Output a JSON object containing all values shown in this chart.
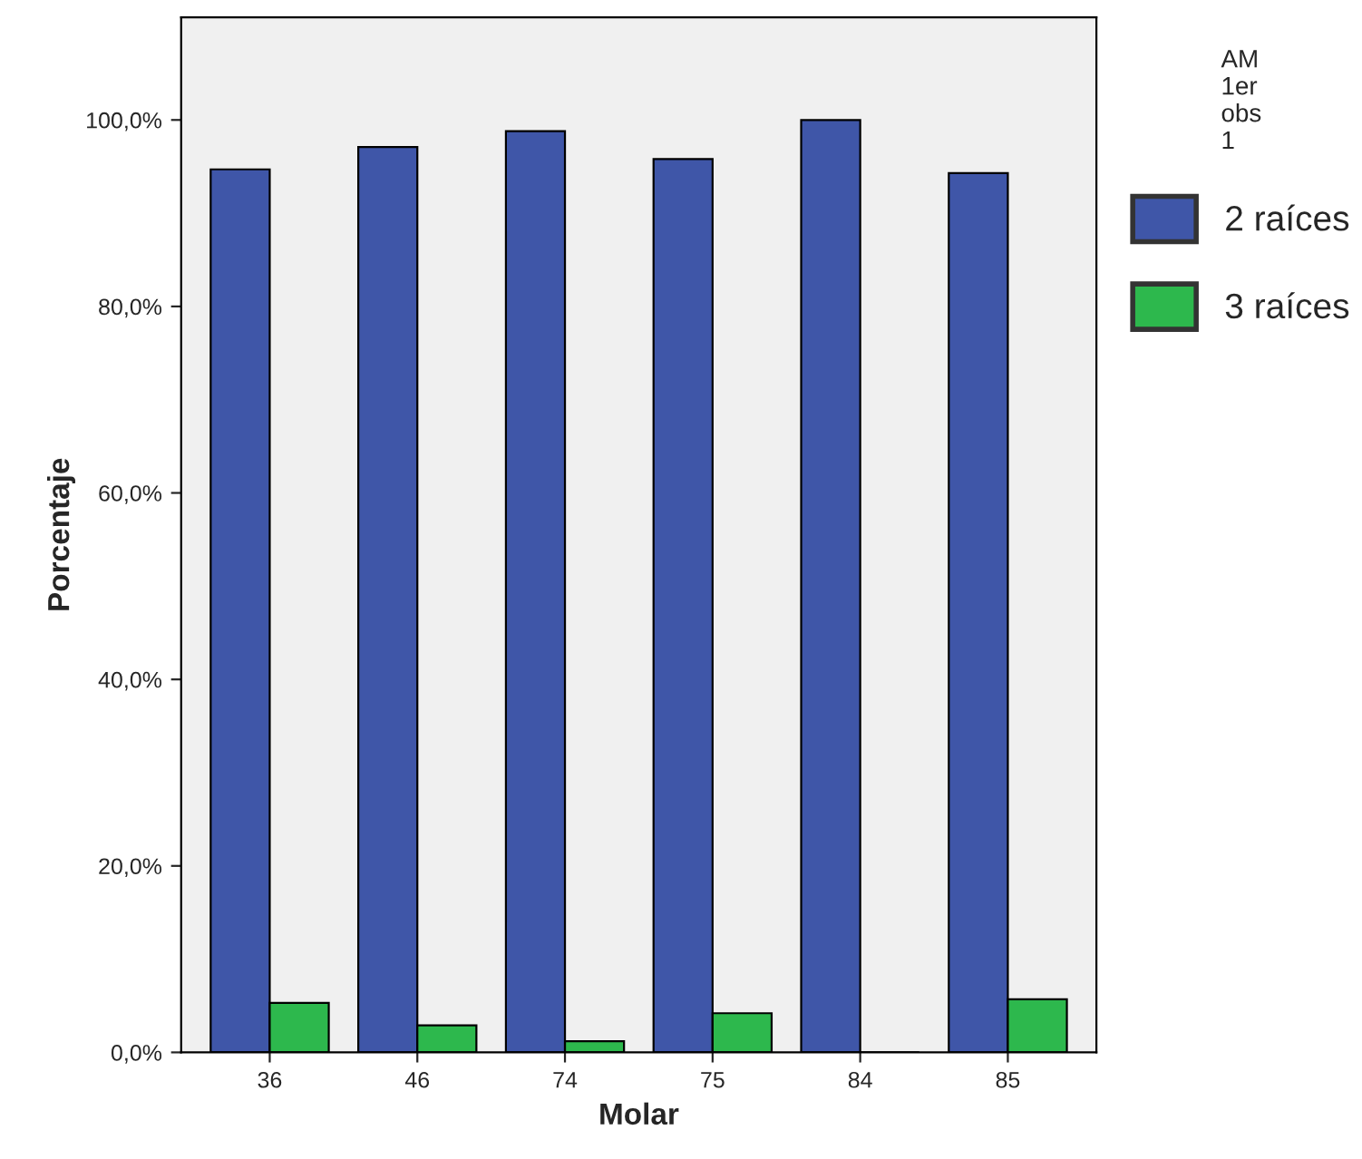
{
  "chart_data": {
    "type": "bar",
    "xlabel": "Molar",
    "ylabel": "Porcentaje",
    "legend_title": "AM\n1er\nobs\n1",
    "categories": [
      "36",
      "46",
      "74",
      "75",
      "84",
      "85"
    ],
    "series": [
      {
        "name": "2 raíces",
        "color": "#3f56a8",
        "values": [
          94.7,
          97.1,
          98.8,
          95.8,
          100,
          94.3
        ]
      },
      {
        "name": "3 raíces",
        "color": "#2db84d",
        "values": [
          5.3,
          2.9,
          1.2,
          4.2,
          0,
          5.7
        ]
      }
    ],
    "ylim": [
      0,
      111
    ],
    "yticks": [
      {
        "value": 0,
        "label": "0,0%"
      },
      {
        "value": 20,
        "label": "20,0%"
      },
      {
        "value": 40,
        "label": "40,0%"
      },
      {
        "value": 60,
        "label": "60,0%"
      },
      {
        "value": 80,
        "label": "80,0%"
      },
      {
        "value": 100,
        "label": "100,0%"
      }
    ],
    "grid": false,
    "legend": "right"
  }
}
